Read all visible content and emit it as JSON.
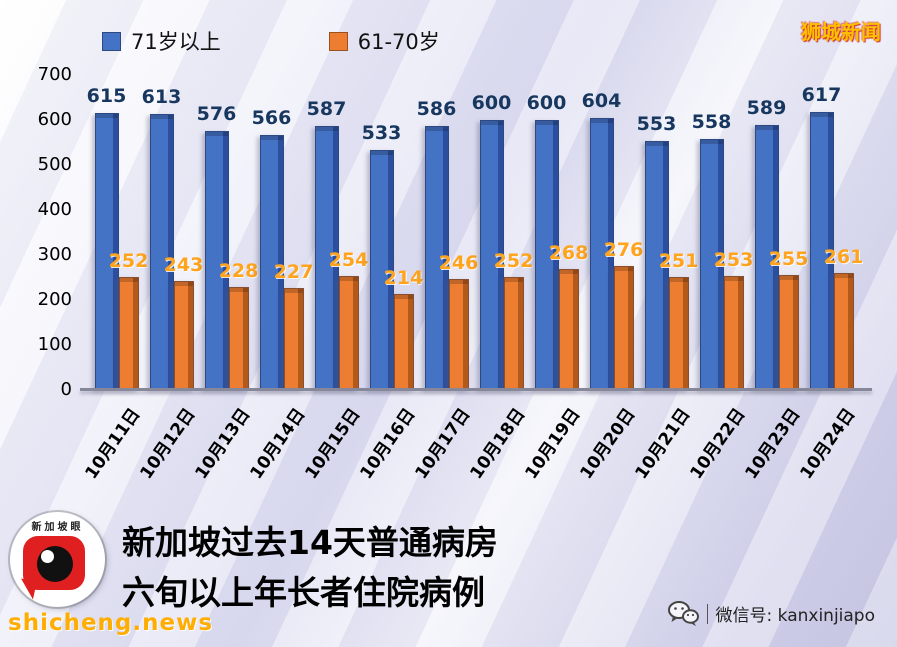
{
  "watermark": {
    "text": "狮城新闻",
    "color": "#FFC000"
  },
  "legend": {
    "items": [
      {
        "label": "71岁以上",
        "color": "#4472C4"
      },
      {
        "label": "61-70岁",
        "color": "#ED7D31"
      }
    ]
  },
  "chart_data": {
    "type": "bar",
    "title": "新加坡过去14天普通病房六旬以上年长者住院病例",
    "categories": [
      "10月11日",
      "10月12日",
      "10月13日",
      "10月14日",
      "10月15日",
      "10月16日",
      "10月17日",
      "10月18日",
      "10月19日",
      "10月20日",
      "10月21日",
      "10月22日",
      "10月23日",
      "10月24日"
    ],
    "series": [
      {
        "name": "71岁以上",
        "color": "#4472C4",
        "side_color": "#2B4F9E",
        "label_color": "#17375E",
        "values": [
          615,
          613,
          576,
          566,
          587,
          533,
          586,
          600,
          600,
          604,
          553,
          558,
          589,
          617
        ]
      },
      {
        "name": "61-70岁",
        "color": "#ED7D31",
        "side_color": "#B35A1A",
        "label_color": "#FFA41C",
        "values": [
          252,
          243,
          228,
          227,
          254,
          214,
          246,
          252,
          268,
          276,
          251,
          253,
          255,
          261
        ]
      }
    ],
    "ylim": [
      0,
      700
    ],
    "yticks": [
      0,
      100,
      200,
      300,
      400,
      500,
      600,
      700
    ],
    "grid": false,
    "legend_position": "top"
  },
  "title": {
    "lines": [
      "新加坡过去14天普通病房",
      "六旬以上年长者住院病例"
    ]
  },
  "footer": {
    "site": "shicheng.news",
    "wechat": "微信号: kanxinjiapo"
  },
  "logo": {
    "brand": "新加坡眼"
  }
}
